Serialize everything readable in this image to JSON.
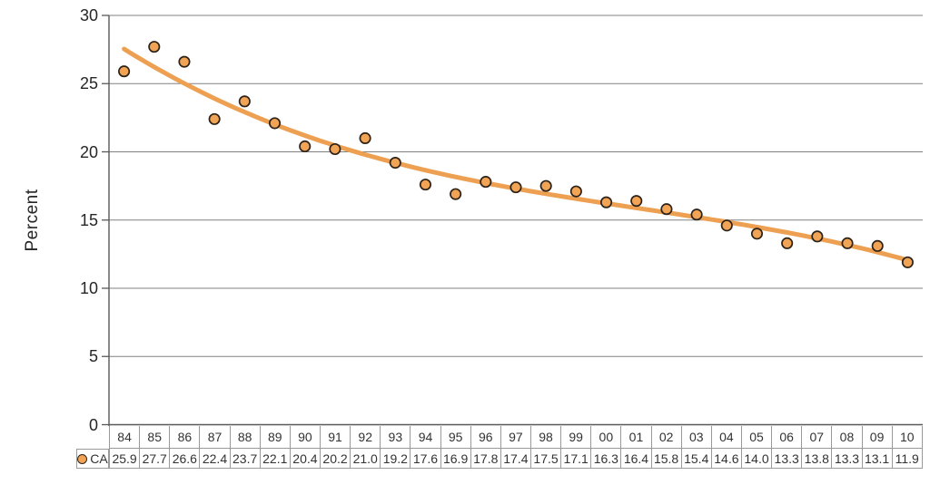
{
  "chart_data": {
    "type": "scatter",
    "title": "",
    "xlabel": "",
    "ylabel": "Percent",
    "ylim": [
      0,
      30
    ],
    "yticks": [
      30,
      25,
      20,
      15,
      10,
      5,
      0
    ],
    "grid": true,
    "legend": {
      "label": "CA",
      "position": "data-table-left"
    },
    "categories": [
      "84",
      "85",
      "86",
      "87",
      "88",
      "89",
      "90",
      "91",
      "92",
      "93",
      "94",
      "95",
      "96",
      "97",
      "98",
      "99",
      "00",
      "01",
      "02",
      "03",
      "04",
      "05",
      "06",
      "07",
      "08",
      "09",
      "10"
    ],
    "series": [
      {
        "name": "CA",
        "values": [
          25.9,
          27.7,
          26.6,
          22.4,
          23.7,
          22.1,
          20.4,
          20.2,
          21.0,
          19.2,
          17.6,
          16.9,
          17.8,
          17.4,
          17.5,
          17.1,
          16.3,
          16.4,
          15.8,
          15.4,
          14.6,
          14.0,
          13.3,
          13.8,
          13.3,
          13.1,
          11.9
        ]
      }
    ],
    "trendline": {
      "type": "polynomial",
      "order": 3,
      "center": 14,
      "coefficients": [
        17.304,
        -0.3946,
        0.014775,
        -0.0011874
      ]
    },
    "colors": {
      "marker_fill": "#F1A356",
      "marker_outline": "#2D2319",
      "trendline": "#EDA052",
      "gridline": "#808080",
      "axis": "#595959",
      "table_border": "#9a9a9a",
      "text": "#262626"
    }
  }
}
